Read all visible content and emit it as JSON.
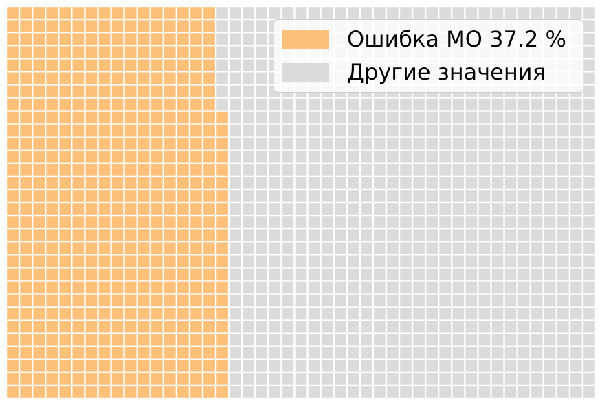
{
  "chart_data": {
    "type": "waffle",
    "rows": 30,
    "columns": 45,
    "grid_fill_order": "column-major, bottom-to-top",
    "series": [
      {
        "name": "Ошибка МО 37.2 %",
        "percent": 37.2,
        "color": "#ffc07a"
      },
      {
        "name": "Другие значения",
        "percent": 62.8,
        "color": "#dbdbdb"
      }
    ],
    "legend_position": "top-right"
  }
}
